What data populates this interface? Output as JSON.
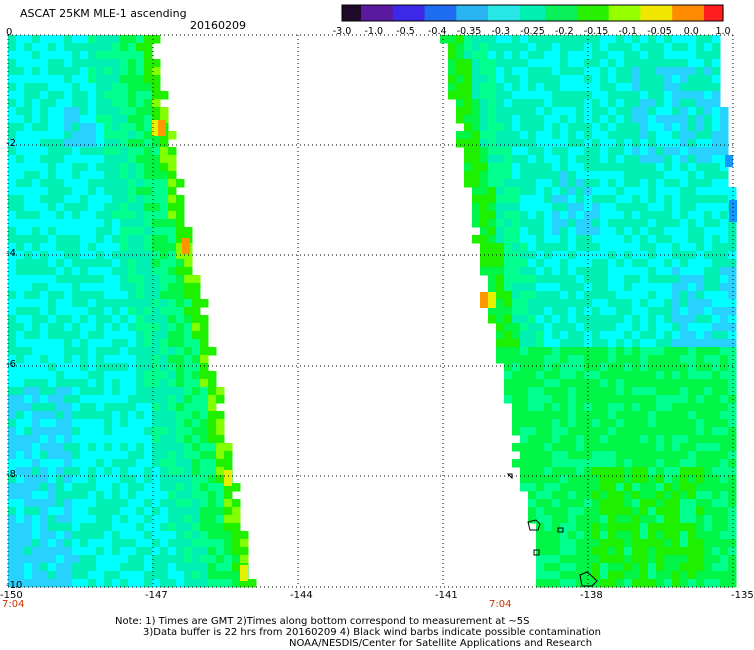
{
  "header": {
    "title": "ASCAT 25KM MLE-1 ascending",
    "date": "20160209"
  },
  "colorbar": {
    "ticks": [
      "-3.0",
      "-1.0",
      "-0.5",
      "-0.4",
      "-0.35",
      "-0.3",
      "-0.25",
      "-0.2",
      "-0.15",
      "-0.1",
      "-0.05",
      "0.0",
      "1.0"
    ],
    "colors": [
      "#1e0a28",
      "#5a1aa0",
      "#3c28e6",
      "#1e6cf0",
      "#28b4f0",
      "#28e6e6",
      "#00f0b4",
      "#0af05a",
      "#28f000",
      "#96ff00",
      "#f0e600",
      "#ff8c00",
      "#ff1e1e"
    ]
  },
  "map": {
    "x_ticks": [
      "-150",
      "-147",
      "-144",
      "-141",
      "-138",
      "-135"
    ],
    "y_ticks": [
      "0",
      "-2",
      "-4",
      "-6",
      "-8",
      "-10"
    ],
    "time_labels": [
      "7:04",
      "7:04"
    ],
    "swath_colors": {
      "cyan": "#00ffff",
      "light_blue": "#28d2ff",
      "blue": "#1496ff",
      "teal": "#00f0b4",
      "spring": "#00ff8c",
      "green": "#00f546",
      "bright_green": "#1ef000",
      "lime": "#82ff00",
      "yellow": "#e6f000",
      "orange": "#ff9600"
    }
  },
  "footer": {
    "line1": "Note: 1) Times are GMT 2)Times along bottom correspond to measurement at ~5S",
    "line2": "3)Data buffer is 22 hrs from 20160209 4) Black wind barbs indicate possible contamination",
    "line3": "NOAA/NESDIS/Center for Satellite Applications and Research"
  }
}
